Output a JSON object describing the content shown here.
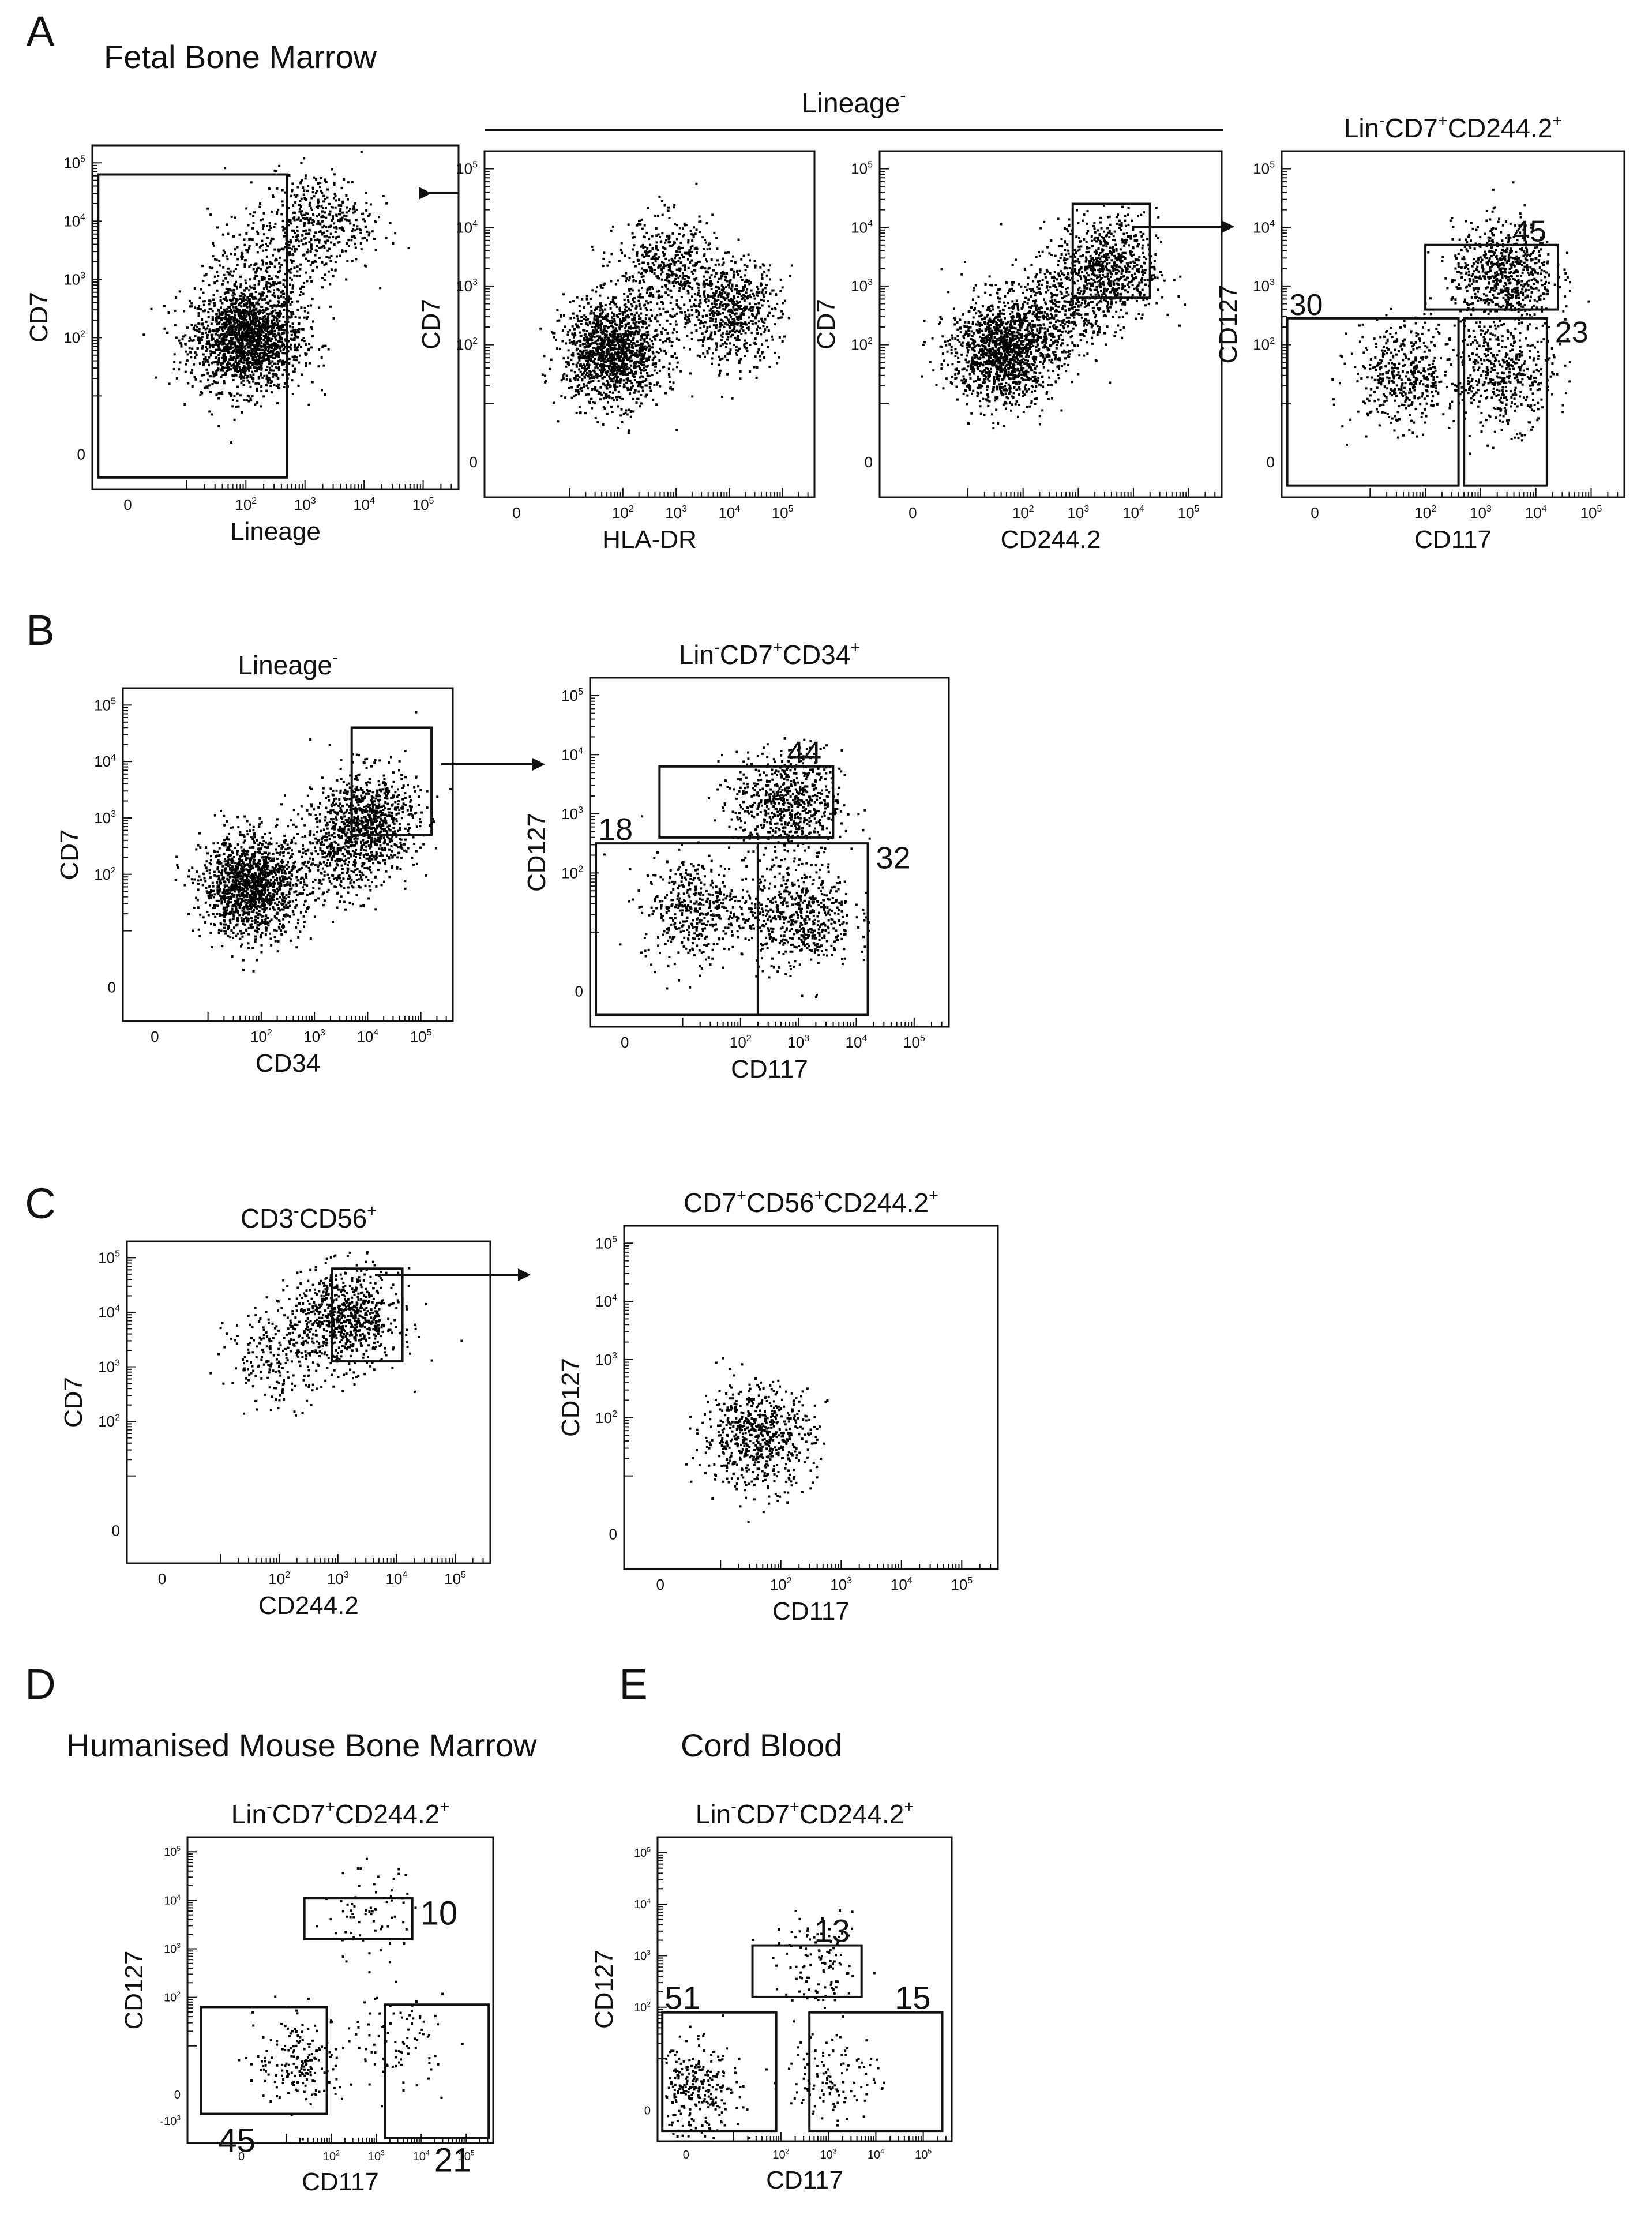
{
  "panels": [
    {
      "letter": "A",
      "title": "Fetal Bone Marrow"
    },
    {
      "letter": "B",
      "title": ""
    },
    {
      "letter": "C",
      "title": ""
    },
    {
      "letter": "D",
      "title": "Humanised Mouse Bone Marrow"
    },
    {
      "letter": "E",
      "title": "Cord Blood"
    }
  ],
  "header_bar": {
    "label": "Lineage",
    "superscript": "-"
  },
  "tick_labels": {
    "log": [
      "0",
      "10",
      "10",
      "10",
      "10"
    ],
    "log_exp": [
      "",
      "2",
      "3",
      "4",
      "5"
    ],
    "neg3": "-10",
    "neg3_exp": "3"
  },
  "chart_data": [
    {
      "id": "A1",
      "type": "scatter",
      "title": "",
      "xlabel": "Lineage",
      "ylabel": "CD7",
      "point_color": "#000000",
      "populations": [
        {
          "x": 2.0,
          "y": 2.0,
          "n": 1800
        },
        {
          "x": 3.2,
          "y": 4.0,
          "n": 420
        },
        {
          "x": 2.3,
          "y": 3.3,
          "n": 260
        }
      ],
      "gates": [
        {
          "x1": -0.5,
          "x2": 2.7,
          "y1": -0.4,
          "y2": 4.8,
          "label": ""
        }
      ]
    },
    {
      "id": "A2",
      "type": "scatter",
      "title": "",
      "xlabel": "HLA-DR",
      "ylabel": "CD7",
      "point_color": "#000000",
      "populations": [
        {
          "x": 1.8,
          "y": 1.9,
          "n": 1400
        },
        {
          "x": 4.0,
          "y": 2.6,
          "n": 650
        },
        {
          "x": 2.8,
          "y": 3.3,
          "n": 450
        }
      ],
      "gates": []
    },
    {
      "id": "A3",
      "type": "scatter",
      "title": "",
      "xlabel": "CD244.2",
      "ylabel": "CD7",
      "point_color": "#000000",
      "populations": [
        {
          "x": 1.6,
          "y": 1.9,
          "n": 1300
        },
        {
          "x": 3.5,
          "y": 3.3,
          "n": 750
        },
        {
          "x": 2.5,
          "y": 2.5,
          "n": 400
        }
      ],
      "gates": [
        {
          "x1": 2.9,
          "x2": 4.3,
          "y1": 2.8,
          "y2": 4.4,
          "label": ""
        }
      ]
    },
    {
      "id": "A4",
      "type": "scatter",
      "title": "Lin-CD7+CD244.2+",
      "xlabel": "CD117",
      "ylabel": "CD127",
      "point_color": "#000000",
      "populations": [
        {
          "x": 3.4,
          "y": 3.2,
          "n": 700
        },
        {
          "x": 1.6,
          "y": 1.5,
          "n": 450
        },
        {
          "x": 3.4,
          "y": 1.5,
          "n": 450
        }
      ],
      "gates": [
        {
          "x1": 2.0,
          "x2": 4.4,
          "y1": 2.6,
          "y2": 3.7,
          "label": "45"
        },
        {
          "x1": -0.5,
          "x2": 2.6,
          "y1": -0.4,
          "y2": 2.45,
          "label": "30"
        },
        {
          "x1": 2.7,
          "x2": 4.2,
          "y1": -0.4,
          "y2": 2.45,
          "label": "23"
        }
      ]
    },
    {
      "id": "B1",
      "type": "scatter",
      "title": "Lineage-",
      "xlabel": "CD34",
      "ylabel": "CD7",
      "point_color": "#000000",
      "populations": [
        {
          "x": 1.8,
          "y": 1.8,
          "n": 1400
        },
        {
          "x": 4.0,
          "y": 3.0,
          "n": 750
        },
        {
          "x": 3.4,
          "y": 2.4,
          "n": 400
        }
      ],
      "gates": [
        {
          "x1": 3.7,
          "x2": 5.2,
          "y1": 2.7,
          "y2": 4.6,
          "label": ""
        }
      ]
    },
    {
      "id": "B2",
      "type": "scatter",
      "title": "Lin-CD7+CD34+",
      "xlabel": "CD117",
      "ylabel": "CD127",
      "point_color": "#000000",
      "populations": [
        {
          "x": 2.8,
          "y": 3.2,
          "n": 650
        },
        {
          "x": 1.2,
          "y": 1.4,
          "n": 450
        },
        {
          "x": 3.0,
          "y": 1.3,
          "n": 550
        }
      ],
      "gates": [
        {
          "x1": 0.6,
          "x2": 3.6,
          "y1": 2.6,
          "y2": 3.8,
          "label": "44"
        },
        {
          "x1": -0.5,
          "x2": 2.3,
          "y1": -0.4,
          "y2": 2.5,
          "label": "18"
        },
        {
          "x1": 2.3,
          "x2": 4.2,
          "y1": -0.4,
          "y2": 2.5,
          "label": "32"
        }
      ]
    },
    {
      "id": "C1",
      "type": "scatter",
      "title": "CD3-CD56+",
      "xlabel": "CD244.2",
      "ylabel": "CD7",
      "point_color": "#000000",
      "populations": [
        {
          "x": 3.1,
          "y": 3.9,
          "n": 750
        },
        {
          "x": 2.0,
          "y": 3.2,
          "n": 220
        }
      ],
      "gates": [
        {
          "x1": 2.9,
          "x2": 4.1,
          "y1": 3.1,
          "y2": 4.8,
          "label": ""
        }
      ]
    },
    {
      "id": "C2",
      "type": "scatter",
      "title": "CD7+CD56+CD244.2+",
      "xlabel": "CD117",
      "ylabel": "CD127",
      "point_color": "#000000",
      "populations": [
        {
          "x": 1.6,
          "y": 1.7,
          "n": 650
        }
      ],
      "gates": []
    },
    {
      "id": "D",
      "type": "scatter",
      "title": "Lin-CD7+CD244.2+",
      "xlabel": "CD117",
      "ylabel": "CD127",
      "point_color": "#000000",
      "populations": [
        {
          "x": 1.3,
          "y": 0.7,
          "n": 180
        },
        {
          "x": 3.5,
          "y": 1.1,
          "n": 90
        },
        {
          "x": 2.8,
          "y": 3.7,
          "n": 70
        }
      ],
      "gates": [
        {
          "x1": 1.4,
          "x2": 3.8,
          "y1": 3.2,
          "y2": 4.05,
          "label": "10"
        },
        {
          "x1": -0.9,
          "x2": 1.9,
          "y1": -0.4,
          "y2": 1.8,
          "label": "45"
        },
        {
          "x1": 3.2,
          "x2": 5.5,
          "y1": -0.9,
          "y2": 1.85,
          "label": "21"
        }
      ]
    },
    {
      "id": "E",
      "type": "scatter",
      "title": "Lin-CD7+CD244.2+",
      "xlabel": "CD117",
      "ylabel": "CD127",
      "point_color": "#000000",
      "populations": [
        {
          "x": 0.2,
          "y": 0.4,
          "n": 280
        },
        {
          "x": 3.1,
          "y": 0.7,
          "n": 120
        },
        {
          "x": 2.8,
          "y": 2.8,
          "n": 110
        }
      ],
      "gates": [
        {
          "x1": 1.4,
          "x2": 3.7,
          "y1": 2.2,
          "y2": 3.2,
          "label": "13"
        },
        {
          "x1": -0.5,
          "x2": 1.9,
          "y1": -0.4,
          "y2": 1.9,
          "label": "51"
        },
        {
          "x1": 2.6,
          "x2": 5.4,
          "y1": -0.4,
          "y2": 1.9,
          "label": "15"
        }
      ]
    }
  ]
}
